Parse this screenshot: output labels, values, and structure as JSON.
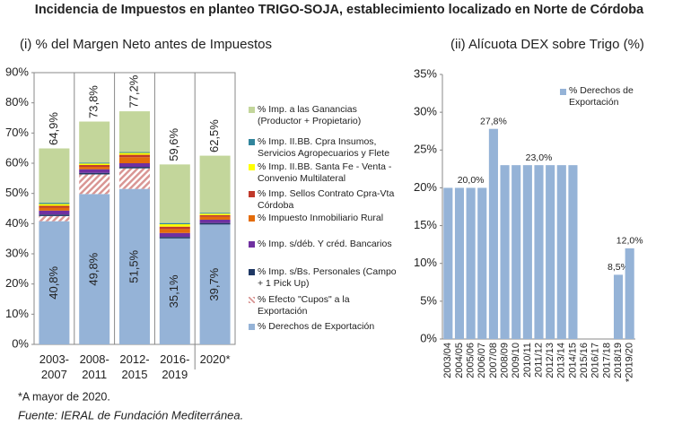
{
  "title": "Incidencia de Impuestos en planteo TRIGO-SOJA, establecimiento localizado en Norte de Córdoba",
  "footnote": "*A mayor de 2020.",
  "source": "Fuente: IERAL de Fundación Mediterránea.",
  "chart_data": [
    {
      "type": "stacked_bar",
      "title": "(i) % del Margen Neto antes de Impuestos",
      "categories": [
        "2003-2007",
        "2008-2011",
        "2012-2015",
        "2016-2019",
        "2020*"
      ],
      "ylim": [
        0,
        90
      ],
      "yticks": [
        {
          "value": 0,
          "label": "0%"
        },
        {
          "value": 10,
          "label": "10%"
        },
        {
          "value": 20,
          "label": "20%"
        },
        {
          "value": 30,
          "label": "30%"
        },
        {
          "value": 40,
          "label": "40%"
        },
        {
          "value": 50,
          "label": "50%"
        },
        {
          "value": 60,
          "label": "60%"
        },
        {
          "value": 70,
          "label": "70%"
        },
        {
          "value": 80,
          "label": "80%"
        },
        {
          "value": 90,
          "label": "90%"
        }
      ],
      "grid": false,
      "annotations": [
        "64,9%",
        "73,8%",
        "77,2%",
        "59,6%",
        "62,5%"
      ],
      "series": [
        {
          "name": "% Derechos de Exportación",
          "color": "#95b3d7",
          "values": [
            40.8,
            49.8,
            51.5,
            35.1,
            39.7
          ],
          "value_labels": [
            "40,8%",
            "49,8%",
            "51,5%",
            "35,1%",
            "39,7%"
          ]
        },
        {
          "name": "% Efecto \"Cupos\" a la Exportación",
          "color": "#d99694",
          "pattern": "hatch",
          "values": [
            1.7,
            6.5,
            6.8,
            0,
            0
          ]
        },
        {
          "name": "% Imp. s/Bs. Personales (Campo + 1 Pick Up)",
          "color": "#1f3864",
          "values": [
            0.5,
            0.5,
            0.5,
            0.5,
            0.5
          ]
        },
        {
          "name": "% Imp. s/déb. Y créd. Bancarios",
          "color": "#7030a0",
          "values": [
            1.3,
            1.2,
            1.2,
            1.3,
            1.1
          ]
        },
        {
          "name": "% Impuesto Inmobiliario Rural",
          "color": "#e46c0a",
          "values": [
            1.0,
            0.8,
            2.0,
            1.3,
            1.0
          ]
        },
        {
          "name": "% Imp. Sellos Contrato Cpra-Vta Córdoba",
          "color": "#c0392b",
          "values": [
            0.6,
            0.6,
            0.8,
            0.8,
            0.5
          ]
        },
        {
          "name": "% Imp. II.BB. Santa Fe - Venta - Convenio Multilateral",
          "color": "#ffff00",
          "values": [
            0.6,
            0.5,
            0.6,
            0.8,
            0.5
          ]
        },
        {
          "name": "% Imp. II.BB. Cpra Insumos, Servicios Agropecuarios y Flete",
          "color": "#31859c",
          "values": [
            0.4,
            0.3,
            0.3,
            0.4,
            0.3
          ]
        },
        {
          "name": "% Imp. a las Ganancias (Productor + Propietario)",
          "color": "#c3d69b",
          "values": [
            18.0,
            13.6,
            13.5,
            19.4,
            18.9
          ]
        }
      ]
    },
    {
      "type": "bar",
      "title": "(ii) Alícuota DEX sobre Trigo (%)",
      "categories": [
        "2003/04",
        "2004/05",
        "2005/06",
        "2006/07",
        "2007/08",
        "2008/09",
        "2009/10",
        "2010/11",
        "2011/12",
        "2012/13",
        "2013/14",
        "2014/15",
        "2015/16",
        "2016/17",
        "2017/18",
        "2018/19",
        "*2019/20"
      ],
      "ylim": [
        0,
        35
      ],
      "yticks": [
        {
          "value": 0,
          "label": "0%"
        },
        {
          "value": 5,
          "label": "5%"
        },
        {
          "value": 10,
          "label": "10%"
        },
        {
          "value": 15,
          "label": "15%"
        },
        {
          "value": 20,
          "label": "20%"
        },
        {
          "value": 25,
          "label": "25%"
        },
        {
          "value": 30,
          "label": "30%"
        },
        {
          "value": 35,
          "label": "35%"
        }
      ],
      "grid": false,
      "legend": "upper right",
      "series": [
        {
          "name": "% Derechos de Exportación",
          "color": "#95b3d7",
          "values": [
            20,
            20,
            20,
            20,
            27.8,
            23,
            23,
            23,
            23,
            23,
            23,
            23,
            0,
            0,
            0,
            8.5,
            12.0
          ],
          "value_labels": [
            null,
            null,
            "20,0%",
            null,
            "27,8%",
            null,
            null,
            null,
            "23,0%",
            null,
            null,
            null,
            null,
            null,
            null,
            "8,5%",
            "12,0%"
          ]
        }
      ]
    }
  ]
}
